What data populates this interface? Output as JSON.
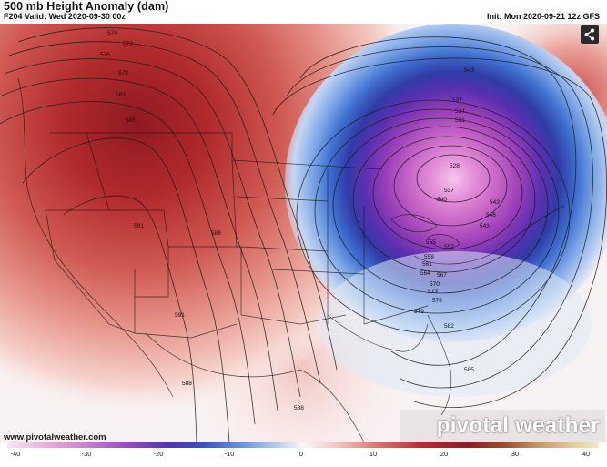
{
  "header": {
    "title": "500 mb Height Anomaly (dam)",
    "valid": "F204 Valid: Wed 2020-09-30 00z",
    "init": "Init: Mon 2020-09-21 12z GFS"
  },
  "contour_labels": [
    "570",
    "573",
    "576",
    "579",
    "582",
    "585",
    "588",
    "591",
    "591",
    "588",
    "588",
    "543",
    "537",
    "534",
    "531",
    "528",
    "537",
    "540",
    "543",
    "546",
    "543",
    "552",
    "555",
    "558",
    "561",
    "564",
    "567",
    "570",
    "573",
    "576",
    "579",
    "582",
    "585",
    "588"
  ],
  "footer": {
    "site": "www.pivotalweather.com",
    "brand": "pivotal weather"
  },
  "colorbar": {
    "min": -40,
    "max": 40,
    "ticks": [
      "-40",
      "-30",
      "-20",
      "-10",
      "0",
      "10",
      "20",
      "30",
      "40"
    ]
  },
  "colors": {
    "ridge": "#b8222e",
    "trough": "#7a2ec0",
    "neutral": "#f7f7f7"
  },
  "icons": {
    "share": "share-icon"
  }
}
